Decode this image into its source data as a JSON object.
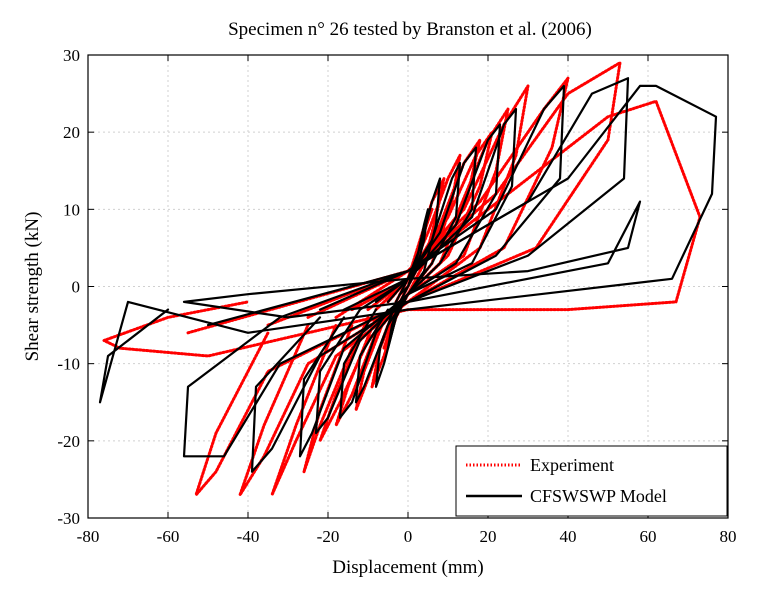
{
  "chart_data": {
    "type": "line",
    "title": "Specimen n° 26 tested by Branston et al. (2006)",
    "xlabel": "Displacement (mm)",
    "ylabel": "Shear strength (kN)",
    "xlim": [
      -80,
      80
    ],
    "ylim": [
      -30,
      30
    ],
    "xticks": [
      -80,
      -60,
      -40,
      -20,
      0,
      20,
      40,
      60,
      80
    ],
    "yticks": [
      -30,
      -20,
      -10,
      0,
      10,
      20,
      30
    ],
    "grid": true,
    "legend_position": "bottom-right",
    "series": [
      {
        "name": "Experiment",
        "color": "#ff0000",
        "style": "dotted",
        "loops": [
          {
            "x": [
              -2,
              0,
              2,
              4,
              6,
              4,
              2,
              0,
              -2,
              -4,
              -6,
              -4,
              -2
            ],
            "y": [
              -1,
              0,
              3,
              7,
              10,
              7,
              2,
              0,
              -2,
              -5,
              -8,
              -5,
              -2
            ]
          },
          {
            "x": [
              -3,
              0,
              3,
              6,
              9,
              7,
              4,
              0,
              -3,
              -6,
              -9,
              -7,
              -3
            ],
            "y": [
              -2,
              1,
              6,
              11,
              14,
              9,
              3,
              -1,
              -4,
              -9,
              -13,
              -8,
              -3
            ]
          },
          {
            "x": [
              -5,
              0,
              5,
              10,
              13,
              11,
              6,
              0,
              -5,
              -10,
              -13,
              -11,
              -5
            ],
            "y": [
              -2,
              1,
              7,
              14,
              17,
              11,
              3,
              -1,
              -5,
              -12,
              -16,
              -11,
              -3
            ]
          },
          {
            "x": [
              -8,
              0,
              8,
              14,
              18,
              15,
              8,
              0,
              -8,
              -14,
              -18,
              -15,
              -8
            ],
            "y": [
              -3,
              1,
              8,
              16,
              19,
              12,
              3,
              -1,
              -6,
              -14,
              -18,
              -13,
              -4
            ]
          },
          {
            "x": [
              -10,
              0,
              10,
              17,
              21,
              18,
              10,
              0,
              -10,
              -17,
              -22,
              -18,
              -10
            ],
            "y": [
              -3,
              1,
              9,
              17,
              20,
              13,
              4,
              -1,
              -7,
              -15,
              -20,
              -14,
              -4
            ]
          },
          {
            "x": [
              -14,
              0,
              12,
              20,
              25,
              22,
              14,
              0,
              -14,
              -22,
              -26,
              -22,
              -14
            ],
            "y": [
              -3,
              1,
              9,
              19,
              23,
              15,
              4,
              -1,
              -8,
              -18,
              -24,
              -16,
              -5
            ]
          },
          {
            "x": [
              -18,
              0,
              14,
              24,
              30,
              27,
              18,
              0,
              -18,
              -28,
              -34,
              -28,
              -18
            ],
            "y": [
              -4,
              2,
              10,
              21,
              26,
              17,
              5,
              -2,
              -9,
              -20,
              -27,
              -18,
              -5
            ]
          },
          {
            "x": [
              -25,
              0,
              18,
              34,
              40,
              36,
              24,
              0,
              -25,
              -36,
              -42,
              -36,
              -25
            ],
            "y": [
              -4,
              2,
              11,
              23,
              27,
              18,
              5,
              -2,
              -10,
              -22,
              -27,
              -18,
              -5
            ]
          },
          {
            "x": [
              -35,
              0,
              22,
              40,
              53,
              50,
              32,
              0,
              -35,
              -48,
              -53,
              -48,
              -35
            ],
            "y": [
              -5,
              2,
              12,
              25,
              29,
              19,
              5,
              -2,
              -11,
              -24,
              -27,
              -19,
              -6
            ]
          },
          {
            "x": [
              -55,
              0,
              30,
              50,
              62,
              73,
              67,
              40,
              0,
              -50,
              -72,
              -76,
              -60,
              -40
            ],
            "y": [
              -6,
              2,
              14,
              22,
              24,
              9,
              -2,
              -3,
              -3,
              -9,
              -8,
              -7,
              -4,
              -2
            ]
          }
        ]
      },
      {
        "name": "CFSWSWP Model",
        "color": "#000000",
        "style": "solid",
        "loops": [
          {
            "x": [
              -2,
              0,
              2,
              4,
              5,
              4,
              2,
              0,
              -2,
              -4,
              -5,
              -4,
              -2
            ],
            "y": [
              -1,
              0,
              3,
              8,
              10,
              6,
              2,
              0,
              -2,
              -6,
              -8,
              -5,
              -2
            ]
          },
          {
            "x": [
              -3,
              0,
              3,
              6,
              8,
              7,
              4,
              0,
              -3,
              -6,
              -8,
              -7,
              -3
            ],
            "y": [
              -2,
              1,
              5,
              11,
              14,
              8,
              2,
              -1,
              -4,
              -10,
              -13,
              -8,
              -2
            ]
          },
          {
            "x": [
              -5,
              0,
              6,
              11,
              13,
              12,
              6,
              0,
              -5,
              -11,
              -13,
              -12,
              -5
            ],
            "y": [
              -2,
              1,
              6,
              14,
              16,
              9,
              3,
              -1,
              -5,
              -13,
              -15,
              -9,
              -3
            ]
          },
          {
            "x": [
              -8,
              0,
              8,
              14,
              17,
              16,
              8,
              0,
              -8,
              -14,
              -17,
              -16,
              -8
            ],
            "y": [
              -2,
              1,
              7,
              16,
              18,
              10,
              3,
              -1,
              -6,
              -15,
              -17,
              -10,
              -3
            ]
          },
          {
            "x": [
              -12,
              0,
              12,
              20,
              23,
              22,
              12,
              0,
              -12,
              -20,
              -23,
              -22,
              -12
            ],
            "y": [
              -3,
              1,
              8,
              19,
              21,
              12,
              3,
              -1,
              -7,
              -17,
              -19,
              -11,
              -3
            ]
          },
          {
            "x": [
              -16,
              0,
              16,
              24,
              27,
              26,
              16,
              0,
              -16,
              -24,
              -27,
              -26,
              -16
            ],
            "y": [
              -3,
              1,
              9,
              21,
              23,
              13,
              3,
              -1,
              -8,
              -19,
              -22,
              -12,
              -4
            ]
          },
          {
            "x": [
              -22,
              0,
              22,
              34,
              39,
              38,
              22,
              0,
              -22,
              -34,
              -39,
              -38,
              -22
            ],
            "y": [
              -3,
              2,
              10,
              23,
              26,
              14,
              4,
              -2,
              -9,
              -21,
              -24,
              -13,
              -4
            ]
          },
          {
            "x": [
              -32,
              0,
              30,
              46,
              55,
              54,
              30,
              0,
              -32,
              -46,
              -56,
              -55,
              -32
            ],
            "y": [
              -4,
              2,
              11,
              25,
              27,
              14,
              4,
              -2,
              -10,
              -22,
              -22,
              -13,
              -4
            ]
          },
          {
            "x": [
              -50,
              0,
              40,
              58,
              62,
              77,
              76,
              66,
              0,
              -40,
              -70,
              -77,
              -75,
              -60
            ],
            "y": [
              -5,
              2,
              14,
              26,
              26,
              22,
              12,
              1,
              -3,
              -6,
              -2,
              -15,
              -9,
              -3
            ]
          },
          {
            "x": [
              -56,
              -40,
              0,
              30,
              55,
              58,
              50,
              0,
              -30,
              -56
            ],
            "y": [
              -2,
              -1,
              1,
              2,
              5,
              11,
              3,
              -2,
              -4,
              -2
            ]
          }
        ]
      }
    ]
  }
}
